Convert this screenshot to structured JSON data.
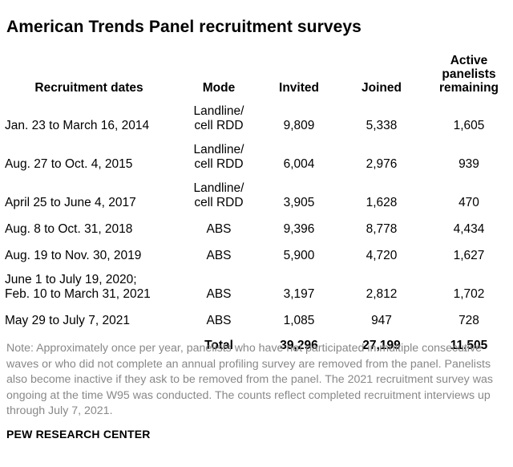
{
  "title": "American Trends Panel recruitment surveys",
  "headers": {
    "dates": "Recruitment dates",
    "mode": "Mode",
    "invited": "Invited",
    "joined": "Joined",
    "remaining_l1": "Active",
    "remaining_l2": "panelists",
    "remaining_l3": "remaining"
  },
  "rows": [
    {
      "dates_l1": "Jan. 23 to March 16, 2014",
      "dates_l2": "",
      "mode_l1": "Landline/",
      "mode_l2": "cell RDD",
      "invited": "9,809",
      "joined": "5,338",
      "remaining": "1,605"
    },
    {
      "dates_l1": "Aug. 27 to Oct. 4, 2015",
      "dates_l2": "",
      "mode_l1": "Landline/",
      "mode_l2": "cell RDD",
      "invited": "6,004",
      "joined": "2,976",
      "remaining": "939"
    },
    {
      "dates_l1": "April 25 to June 4, 2017",
      "dates_l2": "",
      "mode_l1": "Landline/",
      "mode_l2": "cell RDD",
      "invited": "3,905",
      "joined": "1,628",
      "remaining": "470"
    },
    {
      "dates_l1": "Aug. 8 to Oct. 31, 2018",
      "dates_l2": "",
      "mode_l1": "",
      "mode_l2": "ABS",
      "invited": "9,396",
      "joined": "8,778",
      "remaining": "4,434"
    },
    {
      "dates_l1": "Aug. 19 to Nov. 30, 2019",
      "dates_l2": "",
      "mode_l1": "",
      "mode_l2": "ABS",
      "invited": "5,900",
      "joined": "4,720",
      "remaining": "1,627"
    },
    {
      "dates_l1": "June 1 to July 19, 2020;",
      "dates_l2": "Feb. 10 to March 31, 2021",
      "mode_l1": "",
      "mode_l2": "ABS",
      "invited": "3,197",
      "joined": "2,812",
      "remaining": "1,702"
    },
    {
      "dates_l1": "May 29 to July 7, 2021",
      "dates_l2": "",
      "mode_l1": "",
      "mode_l2": "ABS",
      "invited": "1,085",
      "joined": "947",
      "remaining": "728"
    }
  ],
  "total": {
    "label": "Total",
    "invited": "39,296",
    "joined": "27,199",
    "remaining": "11,505"
  },
  "note": "Note: Approximately once per year, panelists who have not participated in multiple consecutive waves or who did not complete an annual profiling survey are removed from the panel. Panelists also become inactive if they ask to be removed from the panel. The 2021 recruitment survey was ongoing at the time W95 was conducted. The counts reflect completed recruitment interviews up through July 7, 2021.",
  "source": "PEW RESEARCH CENTER"
}
